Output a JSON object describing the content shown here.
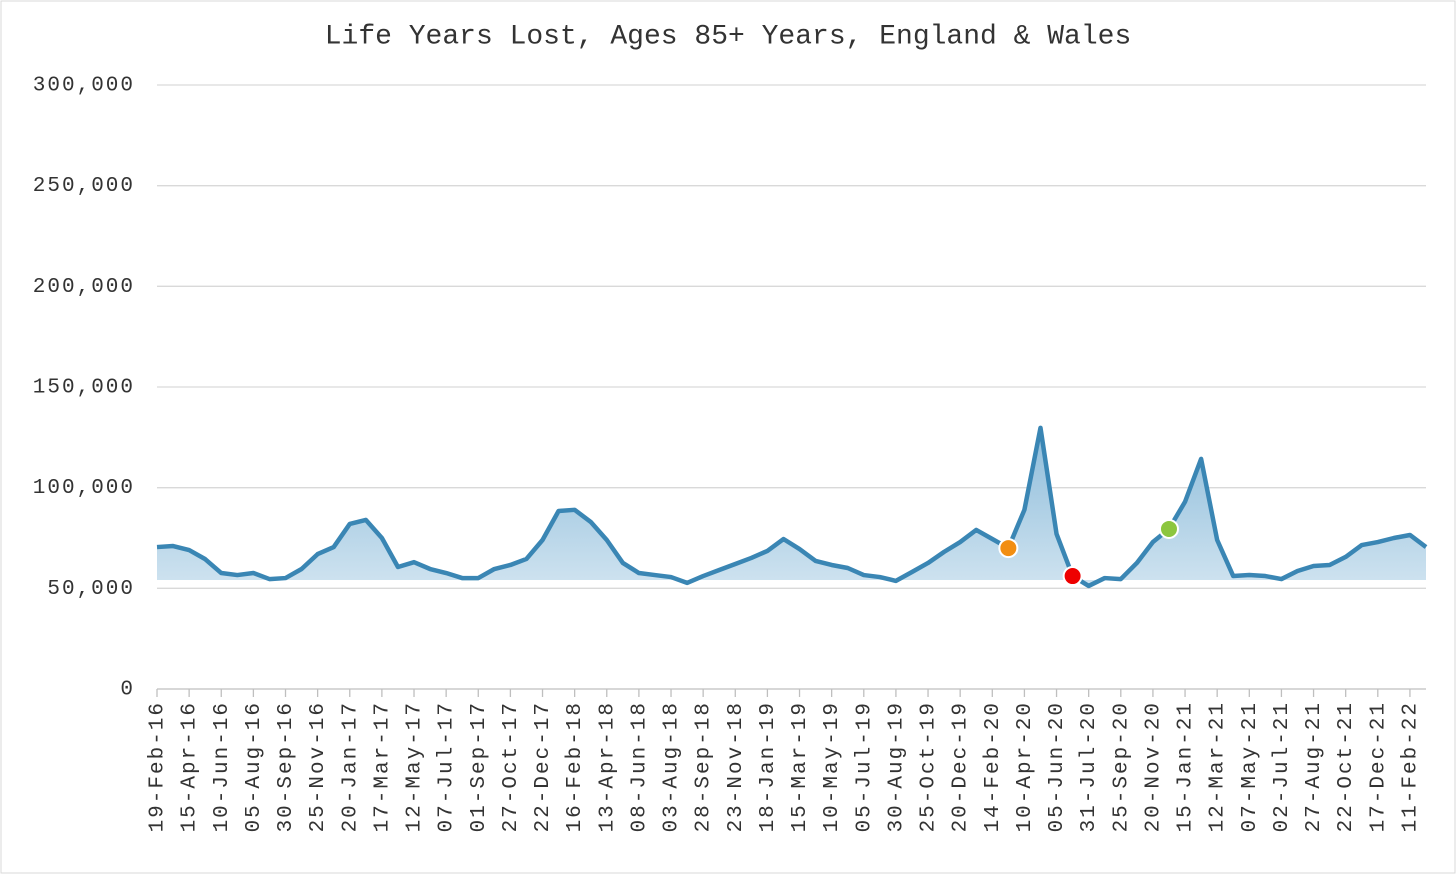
{
  "chart_data": {
    "type": "area_line",
    "title": "Life Years Lost, Ages 85+ Years, England & Wales",
    "categories": [
      "19-Feb-16",
      null,
      "15-Apr-16",
      null,
      "10-Jun-16",
      null,
      "05-Aug-16",
      null,
      "30-Sep-16",
      null,
      "25-Nov-16",
      null,
      "20-Jan-17",
      null,
      "17-Mar-17",
      null,
      "12-May-17",
      null,
      "07-Jul-17",
      null,
      "01-Sep-17",
      null,
      "27-Oct-17",
      null,
      "22-Dec-17",
      null,
      "16-Feb-18",
      null,
      "13-Apr-18",
      null,
      "08-Jun-18",
      null,
      "03-Aug-18",
      null,
      "28-Sep-18",
      null,
      "23-Nov-18",
      null,
      "18-Jan-19",
      null,
      "15-Mar-19",
      null,
      "10-May-19",
      null,
      "05-Jul-19",
      null,
      "30-Aug-19",
      null,
      "25-Oct-19",
      null,
      "20-Dec-19",
      null,
      "14-Feb-20",
      null,
      "10-Apr-20",
      null,
      "05-Jun-20",
      null,
      "31-Jul-20",
      null,
      "25-Sep-20",
      null,
      "20-Nov-20",
      null,
      "15-Jan-21",
      null,
      "12-Mar-21",
      null,
      "07-May-21",
      null,
      "02-Jul-21",
      null,
      "27-Aug-21",
      null,
      "22-Oct-21",
      null,
      "17-Dec-21",
      null,
      "11-Feb-22",
      null
    ],
    "values": [
      70500,
      71000,
      69000,
      64500,
      57600,
      56600,
      57600,
      54600,
      55100,
      59600,
      67000,
      70500,
      82000,
      84000,
      75000,
      60600,
      63000,
      59600,
      57600,
      55100,
      55100,
      59600,
      61600,
      64600,
      74000,
      88400,
      89000,
      83000,
      74000,
      62600,
      57600,
      56600,
      55600,
      52700,
      56100,
      59100,
      62100,
      65100,
      68600,
      74500,
      69500,
      63600,
      61600,
      60100,
      56600,
      55600,
      53700,
      58100,
      62600,
      68100,
      73000,
      79000,
      74500,
      70000,
      89000,
      129700,
      77000,
      56100,
      51200,
      55100,
      54600,
      62600,
      73000,
      79500,
      93000,
      114300,
      74000,
      56100,
      56600,
      56100,
      54600,
      58600,
      61100,
      61600,
      65600,
      71500,
      73000,
      75000,
      76500,
      70500
    ],
    "color": "#3a86b4",
    "highlights": [
      {
        "index": 53,
        "color": "#f28e12"
      },
      {
        "index": 57,
        "color": "#ee0000"
      },
      {
        "index": 63,
        "color": "#8cc63f"
      }
    ],
    "ylim": [
      0,
      300000
    ],
    "yticks": [
      0,
      {
        "value": 50000,
        "label": "50,000"
      },
      {
        "value": 100000,
        "label": "100,000"
      },
      {
        "value": 150000,
        "label": "150,000"
      },
      {
        "value": 200000,
        "label": "200,000"
      },
      {
        "value": 250000,
        "label": "250,000"
      },
      {
        "value": 300000,
        "label": "300,000"
      }
    ],
    "grid": true
  }
}
